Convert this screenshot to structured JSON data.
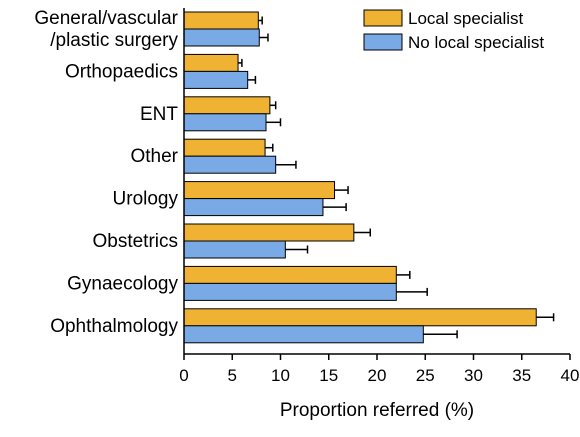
{
  "chart_data": {
    "type": "bar",
    "orientation": "horizontal",
    "categories": [
      [
        "General/vascular",
        "/plastic surgery"
      ],
      [
        "Orthopaedics"
      ],
      [
        "ENT"
      ],
      [
        "Other"
      ],
      [
        "Urology"
      ],
      [
        "Obstetrics"
      ],
      [
        "Gynaecology"
      ],
      [
        "Ophthalmology"
      ]
    ],
    "series": [
      {
        "name": "Local specialist",
        "color": "#f0b232",
        "values": [
          7.7,
          5.6,
          8.9,
          8.4,
          15.6,
          17.6,
          22.0,
          36.5
        ],
        "errors": [
          0.4,
          0.4,
          0.6,
          0.8,
          1.4,
          1.7,
          1.4,
          1.8
        ]
      },
      {
        "name": "No local specialist",
        "color": "#7aaae6",
        "values": [
          7.8,
          6.6,
          8.5,
          9.5,
          14.4,
          10.5,
          22.0,
          24.8
        ],
        "errors": [
          0.9,
          0.8,
          1.5,
          2.1,
          2.4,
          2.3,
          3.2,
          3.5
        ]
      }
    ],
    "xlabel": "Proportion referred (%)",
    "ylabel": "",
    "title": "",
    "xlim": [
      0,
      40
    ],
    "xticks": [
      0,
      5,
      10,
      15,
      20,
      25,
      30,
      35,
      40
    ],
    "grid": false,
    "legend_position": "top-right",
    "error_bars": "one-sided"
  }
}
